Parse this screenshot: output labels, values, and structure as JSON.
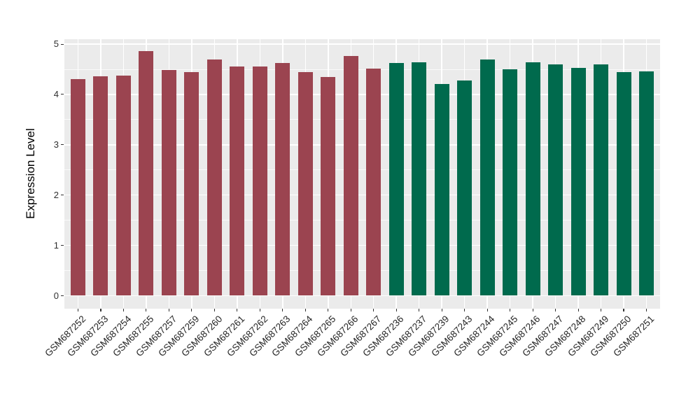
{
  "chart_data": {
    "type": "bar",
    "title": "",
    "xlabel": "",
    "ylabel": "Expression Level",
    "ylim": [
      0,
      5.1
    ],
    "yticks": [
      0,
      1,
      2,
      3,
      4,
      5
    ],
    "grid": "major-and-minor-horizontal, major-vertical, white on grey panel",
    "legend_position": "none",
    "categories": [
      "GSM687252",
      "GSM687253",
      "GSM687254",
      "GSM687255",
      "GSM687257",
      "GSM687259",
      "GSM687260",
      "GSM687261",
      "GSM687262",
      "GSM687263",
      "GSM687264",
      "GSM687265",
      "GSM687266",
      "GSM687267",
      "GSM687236",
      "GSM687237",
      "GSM687239",
      "GSM687243",
      "GSM687244",
      "GSM687245",
      "GSM687246",
      "GSM687247",
      "GSM687248",
      "GSM687249",
      "GSM687250",
      "GSM687251"
    ],
    "values": [
      4.31,
      4.36,
      4.38,
      4.86,
      4.49,
      4.45,
      4.7,
      4.56,
      4.56,
      4.63,
      4.45,
      4.35,
      4.76,
      4.52,
      4.62,
      4.64,
      4.21,
      4.28,
      4.7,
      4.5,
      4.64,
      4.6,
      4.53,
      4.6,
      4.45,
      4.46
    ],
    "bar_groups": [
      "red",
      "red",
      "red",
      "red",
      "red",
      "red",
      "red",
      "red",
      "red",
      "red",
      "red",
      "red",
      "red",
      "red",
      "green",
      "green",
      "green",
      "green",
      "green",
      "green",
      "green",
      "green",
      "green",
      "green",
      "green",
      "green"
    ],
    "group_colors": {
      "red": "#9B4450",
      "green": "#006A4D"
    }
  },
  "colors": {
    "panel_background": "#EBEBEB",
    "grid_major": "#FFFFFF",
    "grid_minor": "#FFFFFF",
    "axis_text": "#262626",
    "axis_title": "#000000",
    "tick_mark": "#333333",
    "page_background": "#FFFFFF"
  }
}
